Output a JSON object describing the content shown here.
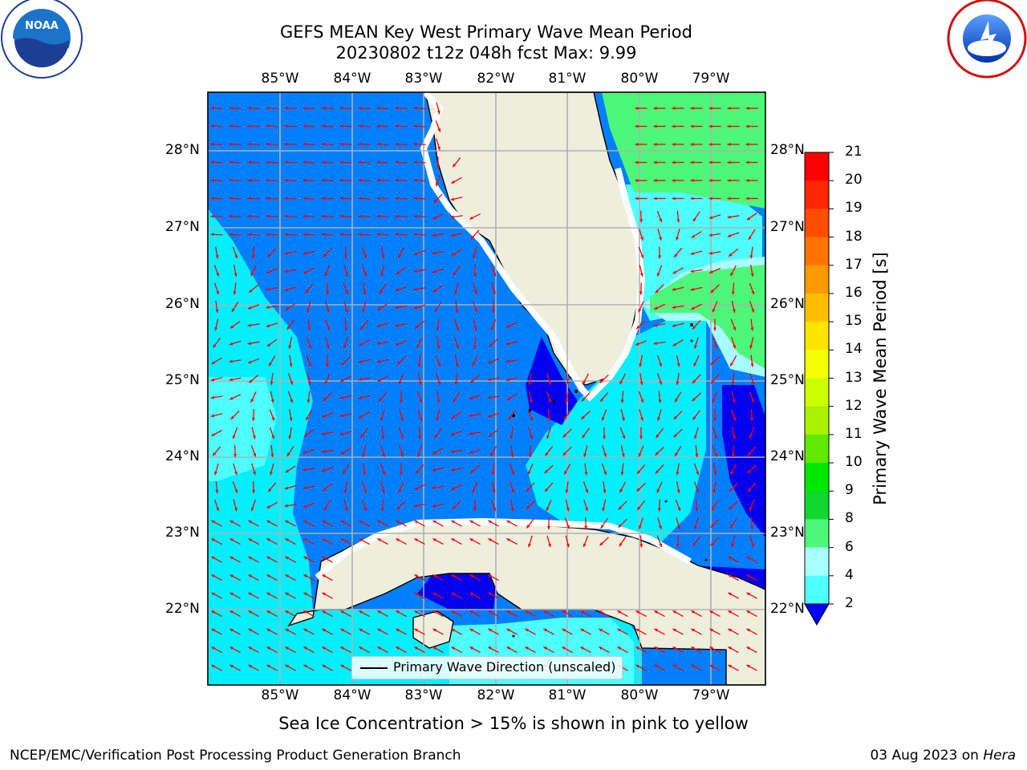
{
  "title": {
    "line1": "GEFS MEAN Key West Primary Wave Mean Period",
    "line2": "20230802 t12z 048h fcst   Max: 9.99"
  },
  "axes": {
    "lon_labels": [
      "85°W",
      "84°W",
      "83°W",
      "82°W",
      "81°W",
      "80°W",
      "79°W"
    ],
    "lat_labels": [
      "28°N",
      "27°N",
      "26°N",
      "25°N",
      "24°N",
      "23°N",
      "22°N"
    ]
  },
  "colorbar": {
    "label": "Primary Wave Mean Period [s]",
    "ticks": [
      "21",
      "20",
      "19",
      "18",
      "17",
      "16",
      "15",
      "14",
      "13",
      "12",
      "11",
      "10",
      "9",
      "8",
      "6",
      "4",
      "2"
    ],
    "colors": [
      "#fe0000",
      "#ff2600",
      "#ff4d00",
      "#ff7300",
      "#ff9900",
      "#ffbf00",
      "#ffe400",
      "#f4ff00",
      "#ccff00",
      "#a8f200",
      "#5fe800",
      "#00e800",
      "#10d830",
      "#4df77a",
      "#a8ffff",
      "#4dffff",
      "#00f0ff",
      "#007fff"
    ],
    "under_color": "#0000ff"
  },
  "legend": {
    "label": "Primary Wave Direction (unscaled)"
  },
  "caption": "Sea Ice Concentration > 15% is shown in pink to yellow",
  "footer": {
    "left": "NCEP/EMC/Verification Post Processing Product Generation Branch",
    "right_date": "03 Aug 2023 on ",
    "right_host": "Hera"
  },
  "logos": {
    "noaa": "NOAA",
    "nws": "NATIONAL WEATHER SERVICE"
  },
  "colors": {
    "deep_blue": "#0000ee",
    "mid_blue": "#007fff",
    "cyan": "#00f0ff",
    "light_cyan": "#4dffff",
    "pale_cyan": "#a8ffff",
    "green": "#4df77a",
    "land": "#eeeedd",
    "arrows": "#ff0000",
    "grid": "#b0b0b0"
  }
}
